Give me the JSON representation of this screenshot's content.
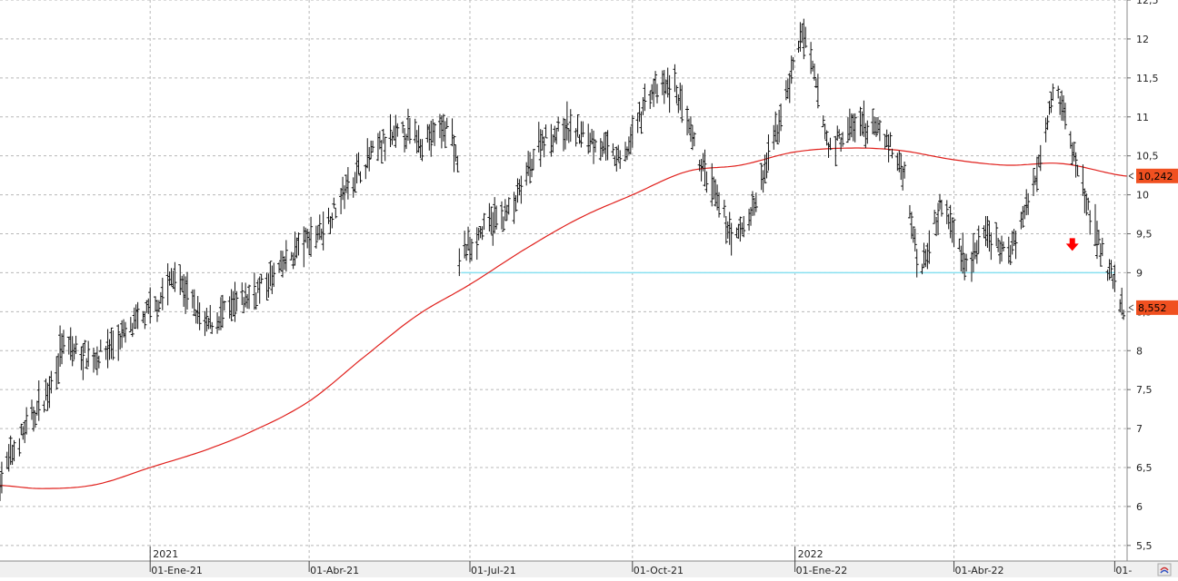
{
  "chart_data": {
    "type": "ohlc",
    "title": "",
    "xlabel": "",
    "ylabel": "",
    "ylim": [
      5.3,
      12.5
    ],
    "y_ticks": [
      "5,5",
      "6",
      "6,5",
      "7",
      "7,5",
      "8",
      "8,5",
      "9",
      "9,5",
      "10",
      "10,5",
      "11",
      "11,5",
      "12",
      "12,5"
    ],
    "y_tick_values": [
      5.5,
      6,
      6.5,
      7,
      7.5,
      8,
      8.5,
      9,
      9.5,
      10,
      10.5,
      11,
      11.5,
      12,
      12.5
    ],
    "x_tick_labels": [
      "01-Ene-21",
      "01-Abr-21",
      "01-Jul-21",
      "01-Oct-21",
      "01-Ene-22",
      "01-Abr-22",
      "01-"
    ],
    "x_tick_dates": [
      "2021-01-01",
      "2021-04-01",
      "2021-07-01",
      "2021-10-01",
      "2022-01-01",
      "2022-04-01",
      "2022-07-01"
    ],
    "year_labels": [
      {
        "label": "2021",
        "date": "2021-01-01"
      },
      {
        "label": "2022",
        "date": "2022-01-01"
      }
    ],
    "x_range": [
      "2020-10-08",
      "2022-07-08"
    ],
    "grid": true,
    "price_series": {
      "name": "",
      "style": "ohlc-bars",
      "color": "#000000",
      "anchors": [
        [
          "2020-10-08",
          6.35
        ],
        [
          "2020-10-20",
          6.9
        ],
        [
          "2020-11-05",
          7.5
        ],
        [
          "2020-11-12",
          8.05
        ],
        [
          "2020-12-01",
          7.9
        ],
        [
          "2020-12-20",
          8.25
        ],
        [
          "2021-01-05",
          8.6
        ],
        [
          "2021-01-15",
          9.0
        ],
        [
          "2021-02-01",
          8.3
        ],
        [
          "2021-02-20",
          8.6
        ],
        [
          "2021-03-10",
          8.9
        ],
        [
          "2021-03-25",
          9.3
        ],
        [
          "2021-04-10",
          9.6
        ],
        [
          "2021-04-25",
          10.2
        ],
        [
          "2021-05-10",
          10.6
        ],
        [
          "2021-05-25",
          10.8
        ],
        [
          "2021-06-05",
          10.7
        ],
        [
          "2021-06-20",
          10.9
        ],
        [
          "2021-06-24",
          10.3
        ],
        [
          "2021-06-25",
          9.2
        ],
        [
          "2021-07-10",
          9.6
        ],
        [
          "2021-07-25",
          9.8
        ],
        [
          "2021-08-10",
          10.7
        ],
        [
          "2021-08-25",
          10.85
        ],
        [
          "2021-09-10",
          10.7
        ],
        [
          "2021-09-25",
          10.4
        ],
        [
          "2021-10-10",
          11.3
        ],
        [
          "2021-10-25",
          11.4
        ],
        [
          "2021-11-05",
          10.6
        ],
        [
          "2021-11-20",
          9.8
        ],
        [
          "2021-11-28",
          9.4
        ],
        [
          "2021-12-10",
          9.9
        ],
        [
          "2021-12-25",
          11.1
        ],
        [
          "2022-01-05",
          12.1
        ],
        [
          "2022-01-12",
          11.5
        ],
        [
          "2022-01-20",
          10.6
        ],
        [
          "2022-02-05",
          10.9
        ],
        [
          "2022-02-20",
          10.8
        ],
        [
          "2022-03-05",
          10.2
        ],
        [
          "2022-03-12",
          9.0
        ],
        [
          "2022-03-25",
          9.9
        ],
        [
          "2022-04-08",
          9.1
        ],
        [
          "2022-04-20",
          9.5
        ],
        [
          "2022-05-01",
          9.2
        ],
        [
          "2022-05-15",
          10.0
        ],
        [
          "2022-05-28",
          11.5
        ],
        [
          "2022-06-08",
          10.5
        ],
        [
          "2022-06-20",
          9.5
        ],
        [
          "2022-07-01",
          8.8
        ],
        [
          "2022-07-06",
          8.55
        ]
      ]
    },
    "moving_average": {
      "name": "",
      "color": "#e0201c",
      "points": [
        [
          "2020-10-08",
          6.27
        ],
        [
          "2020-11-01",
          6.23
        ],
        [
          "2020-12-01",
          6.28
        ],
        [
          "2021-01-01",
          6.5
        ],
        [
          "2021-02-01",
          6.72
        ],
        [
          "2021-03-01",
          6.98
        ],
        [
          "2021-04-01",
          7.35
        ],
        [
          "2021-05-01",
          7.9
        ],
        [
          "2021-06-01",
          8.45
        ],
        [
          "2021-07-01",
          8.85
        ],
        [
          "2021-08-01",
          9.3
        ],
        [
          "2021-09-01",
          9.7
        ],
        [
          "2021-10-01",
          10.0
        ],
        [
          "2021-11-01",
          10.3
        ],
        [
          "2021-12-01",
          10.38
        ],
        [
          "2022-01-01",
          10.55
        ],
        [
          "2022-02-01",
          10.6
        ],
        [
          "2022-03-01",
          10.57
        ],
        [
          "2022-04-01",
          10.45
        ],
        [
          "2022-05-01",
          10.38
        ],
        [
          "2022-06-01",
          10.4
        ],
        [
          "2022-07-08",
          10.24
        ]
      ]
    },
    "support_line": {
      "value": 9.0,
      "from": "2021-06-26",
      "to": "2022-07-01",
      "color": "#88e0f0"
    },
    "signal_arrow": {
      "date": "2022-06-07",
      "value": 9.35,
      "direction": "down",
      "color": "#ff0000"
    },
    "price_badges": [
      {
        "label": "10,242",
        "value": 10.242,
        "color": "#f05020"
      },
      {
        "label": "8,552",
        "value": 8.552,
        "color": "#f05020"
      }
    ]
  }
}
